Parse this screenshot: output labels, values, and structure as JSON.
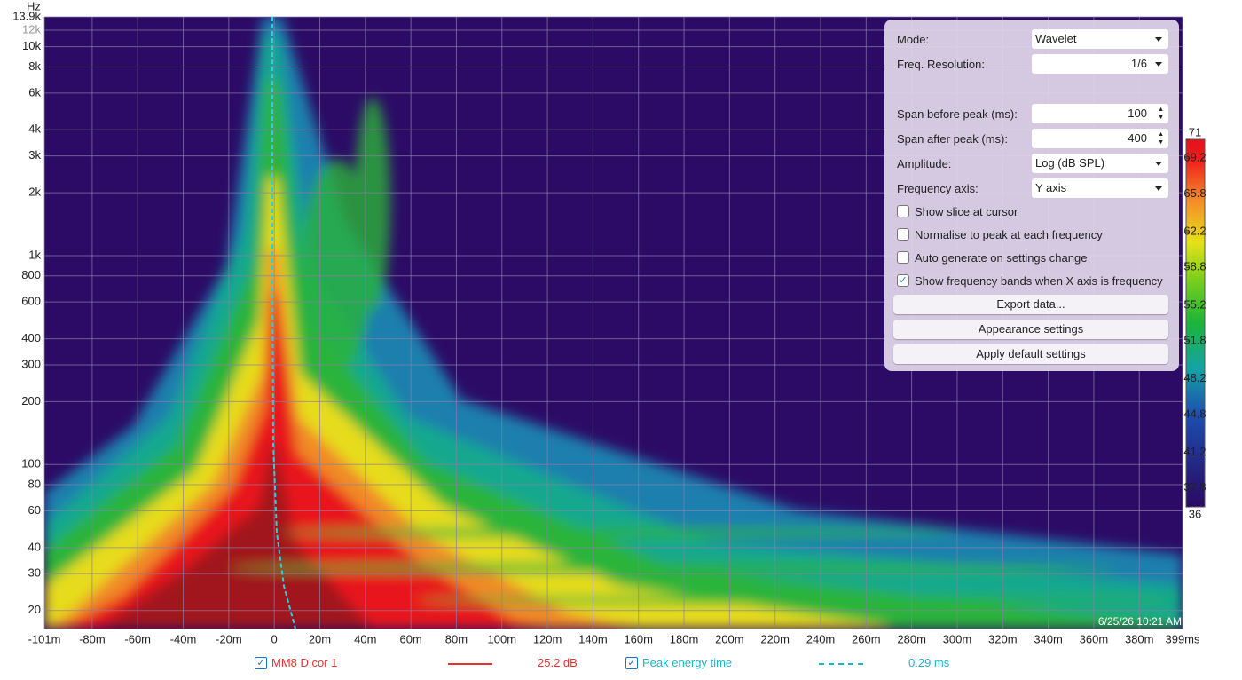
{
  "spectrogram": {
    "type": "heatmap",
    "y_unit": "Hz",
    "log_y": true,
    "ylim": [
      16.4,
      13900
    ],
    "yticks": [
      {
        "value": 13900,
        "label": "13.9k"
      },
      {
        "value": 12000,
        "label": "12k"
      },
      {
        "value": 10000,
        "label": "10k"
      },
      {
        "value": 8000,
        "label": "8k"
      },
      {
        "value": 6000,
        "label": "6k"
      },
      {
        "value": 4000,
        "label": "4k"
      },
      {
        "value": 3000,
        "label": "3k"
      },
      {
        "value": 2000,
        "label": "2k"
      },
      {
        "value": 1000,
        "label": "1k"
      },
      800,
      600,
      400,
      300,
      200,
      100,
      80,
      60,
      40,
      30,
      20
    ],
    "xlim": [
      -101,
      399
    ],
    "xticks": [
      {
        "value": -101,
        "label": "-101m"
      },
      {
        "value": -80,
        "label": "-80m"
      },
      {
        "value": -60,
        "label": "-60m"
      },
      {
        "value": -40,
        "label": "-40m"
      },
      {
        "value": -20,
        "label": "-20m"
      },
      0,
      {
        "value": 20,
        "label": "20m"
      },
      {
        "value": 40,
        "label": "40m"
      },
      {
        "value": 60,
        "label": "60m"
      },
      {
        "value": 80,
        "label": "80m"
      },
      {
        "value": 100,
        "label": "100m"
      },
      {
        "value": 120,
        "label": "120m"
      },
      {
        "value": 140,
        "label": "140m"
      },
      {
        "value": 160,
        "label": "160m"
      },
      {
        "value": 180,
        "label": "180m"
      },
      {
        "value": 200,
        "label": "200m"
      },
      {
        "value": 220,
        "label": "220m"
      },
      {
        "value": 240,
        "label": "240m"
      },
      {
        "value": 260,
        "label": "260m"
      },
      {
        "value": 280,
        "label": "280m"
      },
      {
        "value": 300,
        "label": "300m"
      },
      {
        "value": 320,
        "label": "320m"
      },
      {
        "value": 340,
        "label": "340m"
      },
      {
        "value": 360,
        "label": "360m"
      },
      {
        "value": 380,
        "label": "380m"
      },
      {
        "value": 399,
        "label": "399ms"
      }
    ],
    "colorbar": {
      "clim": [
        36,
        71
      ],
      "ticks": [
        71,
        69.2,
        65.8,
        62.2,
        58.8,
        55.2,
        51.8,
        48.2,
        44.8,
        41.2,
        37.8,
        36
      ]
    },
    "timestamp": "6/25/26 10:21 AM"
  },
  "settings_panel": {
    "mode": {
      "label": "Mode:",
      "value": "Wavelet"
    },
    "freq_resolution": {
      "label": "Freq. Resolution:",
      "value": "1/6"
    },
    "span_before": {
      "label": "Span before peak (ms):",
      "value": 100
    },
    "span_after": {
      "label": "Span after peak (ms):",
      "value": 400
    },
    "amplitude": {
      "label": "Amplitude:",
      "value": "Log (dB SPL)"
    },
    "frequency_axis": {
      "label": "Frequency axis:",
      "value": "Y axis"
    },
    "checkboxes": [
      {
        "label": "Show slice at cursor",
        "checked": false
      },
      {
        "label": "Normalise to peak at each frequency",
        "checked": false
      },
      {
        "label": "Auto generate on settings change",
        "checked": false
      },
      {
        "label": "Show frequency bands when X axis is frequency",
        "checked": true
      }
    ],
    "buttons": [
      "Export data...",
      "Appearance settings",
      "Apply default settings"
    ]
  },
  "legend": [
    {
      "name": "MM8 D cor 1",
      "color": "#e8312f",
      "checked": true,
      "readout": "25.2 dB",
      "dashed": false
    },
    {
      "name": "Peak energy time",
      "color": "#1fb5c9",
      "checked": true,
      "readout": "0.29 ms",
      "dashed": true
    }
  ]
}
